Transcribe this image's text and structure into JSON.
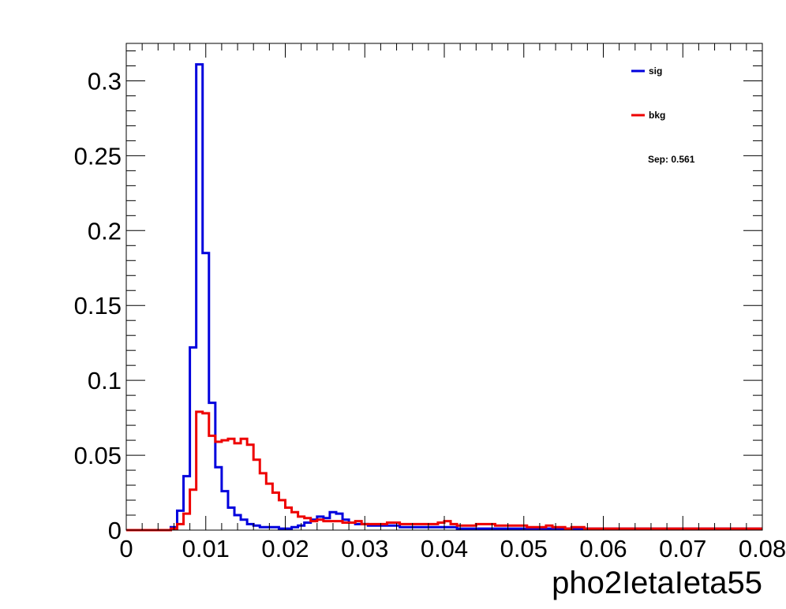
{
  "chart_data": {
    "type": "histogram-step",
    "title": "",
    "xlabel": "pho2IetaIeta55",
    "ylabel": "",
    "xlim": [
      0,
      0.08
    ],
    "ylim": [
      0,
      0.325
    ],
    "bin_width": 0.0008,
    "x_ticks": [
      0,
      0.01,
      0.02,
      0.03,
      0.04,
      0.05,
      0.06,
      0.07,
      0.08
    ],
    "x_tick_labels": [
      "0",
      "0.01",
      "0.02",
      "0.03",
      "0.04",
      "0.05",
      "0.06",
      "0.07",
      "0.08"
    ],
    "y_ticks": [
      0,
      0.05,
      0.1,
      0.15,
      0.2,
      0.25,
      0.3
    ],
    "y_tick_labels": [
      "0",
      "0.05",
      "0.1",
      "0.15",
      "0.2",
      "0.25",
      "0.3"
    ],
    "grid": false,
    "legend_position": "top-right",
    "annotation": "Sep: 0.561",
    "series": [
      {
        "name": "sig",
        "color": "#0000dd",
        "values": [
          0,
          0,
          0,
          0,
          0,
          0,
          0,
          0.002,
          0.013,
          0.036,
          0.122,
          0.311,
          0.185,
          0.085,
          0.042,
          0.026,
          0.015,
          0.01,
          0.007,
          0.004,
          0.003,
          0.002,
          0.002,
          0.002,
          0.001,
          0.001,
          0.002,
          0.003,
          0.005,
          0.007,
          0.009,
          0.008,
          0.012,
          0.011,
          0.007,
          0.005,
          0.004,
          0.004,
          0.003,
          0.003,
          0.003,
          0.003,
          0.003,
          0.002,
          0.002,
          0.002,
          0.002,
          0.002,
          0.002,
          0.002,
          0.002,
          0.002,
          0.001,
          0.001,
          0.001,
          0.001,
          0.001,
          0.001,
          0.001,
          0.001,
          0.001,
          0.001,
          0.001,
          0.001,
          0.001,
          0.001,
          0.001,
          0.001,
          0.001,
          0.001,
          0.001,
          0.001,
          0.001,
          0.001,
          0.001,
          0.001,
          0.001,
          0.001,
          0.001,
          0.001,
          0.001,
          0.001,
          0.001,
          0.001,
          0.001,
          0.001,
          0.001,
          0.001,
          0.001,
          0.001,
          0.001,
          0.001,
          0.001,
          0.001,
          0.001,
          0.001,
          0.001,
          0.001,
          0.001,
          0.001
        ]
      },
      {
        "name": "bkg",
        "color": "#ee0000",
        "values": [
          0,
          0,
          0,
          0,
          0,
          0,
          0,
          0.001,
          0.004,
          0.011,
          0.027,
          0.079,
          0.078,
          0.063,
          0.059,
          0.06,
          0.061,
          0.058,
          0.061,
          0.057,
          0.047,
          0.038,
          0.031,
          0.025,
          0.02,
          0.015,
          0.012,
          0.009,
          0.008,
          0.006,
          0.007,
          0.006,
          0.006,
          0.006,
          0.005,
          0.005,
          0.006,
          0.004,
          0.004,
          0.004,
          0.004,
          0.005,
          0.005,
          0.004,
          0.004,
          0.004,
          0.004,
          0.004,
          0.004,
          0.005,
          0.006,
          0.004,
          0.003,
          0.003,
          0.003,
          0.004,
          0.004,
          0.004,
          0.003,
          0.003,
          0.003,
          0.003,
          0.003,
          0.002,
          0.002,
          0.002,
          0.003,
          0.002,
          0.002,
          0.001,
          0.002,
          0.002,
          0.001,
          0.001,
          0.001,
          0.001,
          0.001,
          0.001,
          0.001,
          0.001,
          0.001,
          0.001,
          0.001,
          0.001,
          0.001,
          0.001,
          0.001,
          0.001,
          0.001,
          0.001,
          0.001,
          0.001,
          0.001,
          0.001,
          0.001,
          0.001,
          0.001,
          0.001,
          0.001,
          0.001
        ]
      }
    ]
  }
}
